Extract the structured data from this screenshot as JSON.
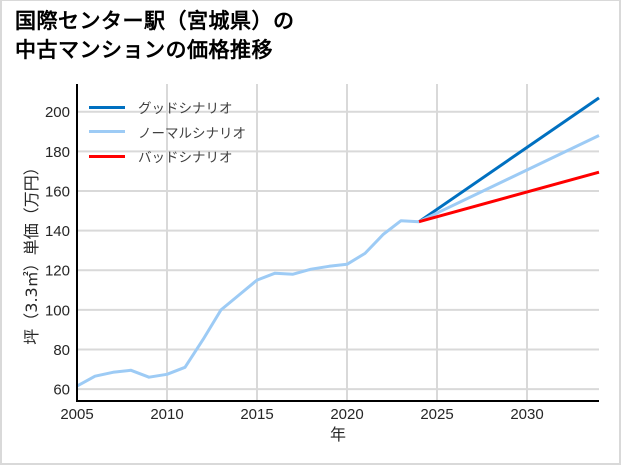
{
  "title": {
    "line1": "国際センター駅（宮城県）の",
    "line2": "中古マンションの価格推移"
  },
  "chart_data": {
    "type": "line",
    "title": "国際センター駅（宮城県）の中古マンションの価格推移",
    "xlabel": "年",
    "ylabel": "坪（3.3㎡）単価（万円）",
    "xlim": [
      2005,
      2034
    ],
    "ylim": [
      54,
      214
    ],
    "xticks": [
      2005,
      2010,
      2015,
      2020,
      2025,
      2030
    ],
    "yticks": [
      60,
      80,
      100,
      120,
      140,
      160,
      180,
      200
    ],
    "grid": true,
    "grid_color": "#d9d9d9",
    "legend_position": "upper left",
    "series": [
      {
        "name": "グッドシナリオ",
        "color": "#0070C0",
        "x": [
          2024,
          2034
        ],
        "values": [
          144.5,
          207
        ]
      },
      {
        "name": "ノーマルシナリオ",
        "color": "#9DCBF5",
        "x": [
          2005,
          2006,
          2007,
          2008,
          2009,
          2010,
          2011,
          2012,
          2013,
          2014,
          2015,
          2016,
          2017,
          2018,
          2019,
          2020,
          2021,
          2022,
          2023,
          2024,
          2034
        ],
        "values": [
          61.5,
          66.5,
          68.5,
          69.5,
          66,
          67.5,
          71,
          85,
          100,
          107.5,
          115,
          118.5,
          118,
          120.5,
          122,
          123,
          128.5,
          138,
          145,
          144.5,
          188
        ]
      },
      {
        "name": "バッドシナリオ",
        "color": "#FF0000",
        "x": [
          2024,
          2034
        ],
        "values": [
          144.5,
          169.5
        ]
      }
    ]
  }
}
